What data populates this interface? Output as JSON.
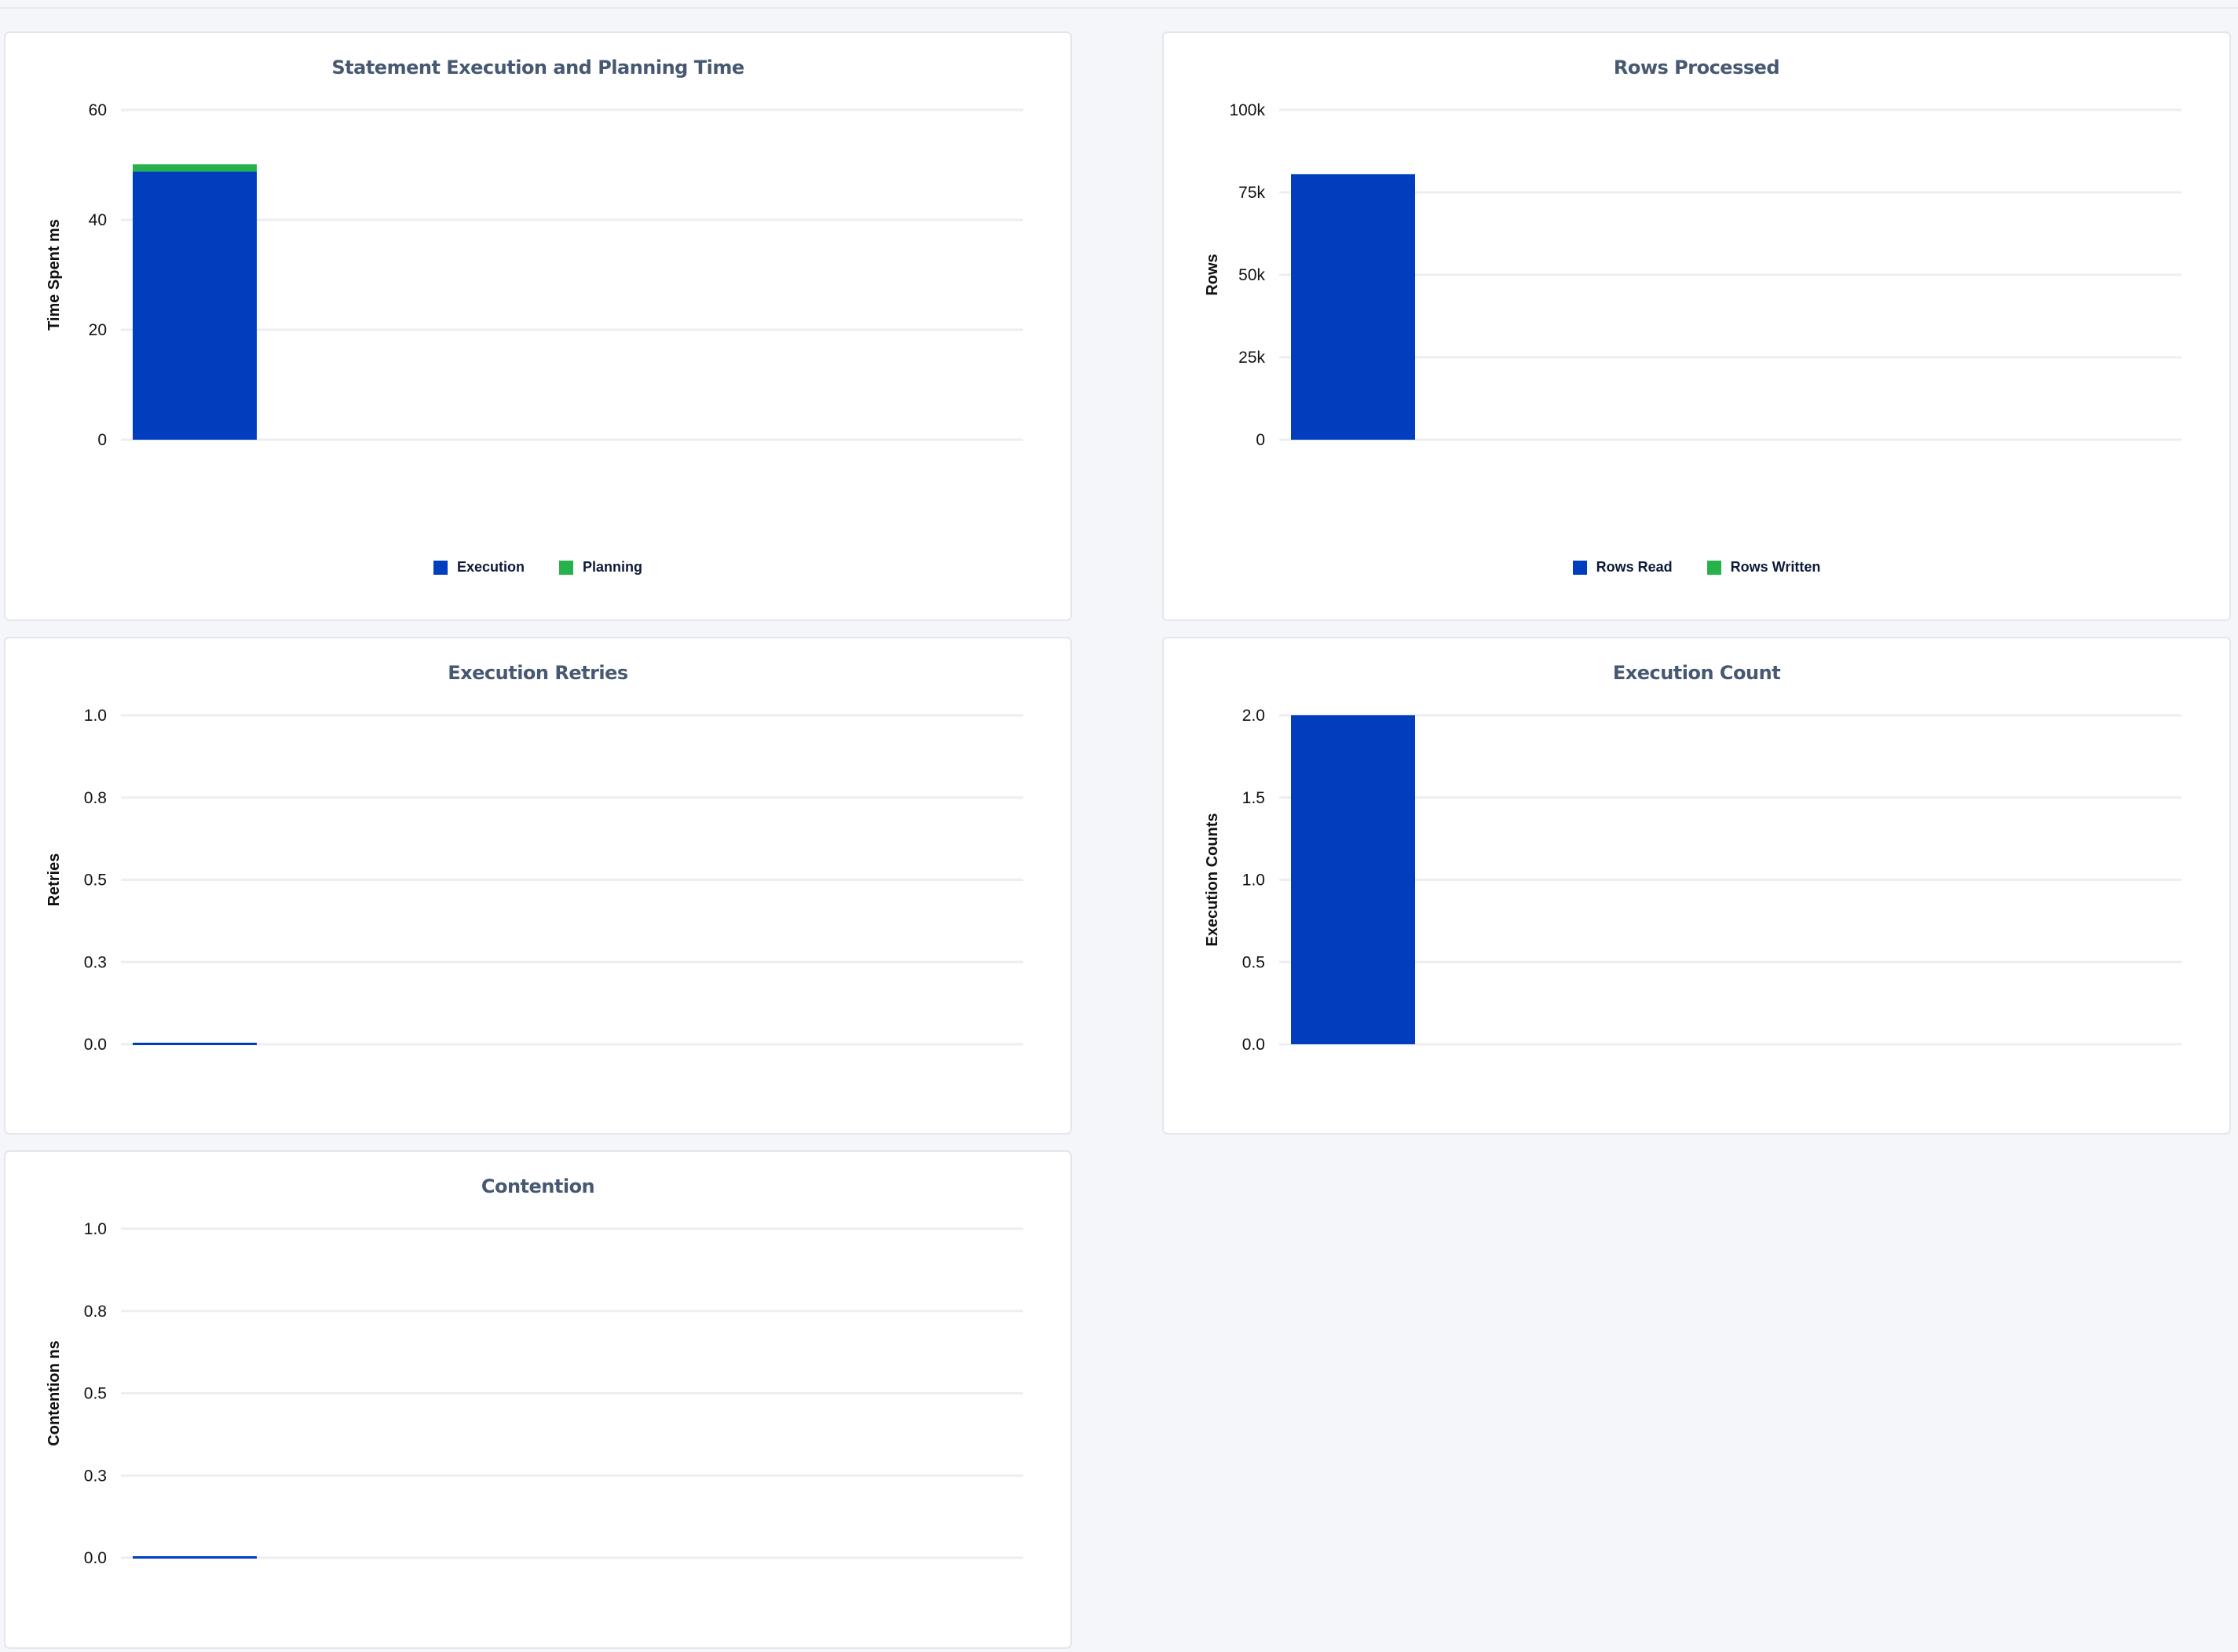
{
  "colors": {
    "primary": "#003ebd",
    "secondary": "#26b14a",
    "grid": "#eceef1",
    "title": "#475872"
  },
  "chart_data": [
    {
      "type": "bar",
      "stacked": true,
      "title": "Statement Execution and Planning Time",
      "ylabel": "Time Spent ms",
      "xlabel": "",
      "ylim": [
        0,
        60
      ],
      "yticks": [
        0,
        20,
        40,
        60
      ],
      "ytick_labels": [
        "0",
        "20",
        "40",
        "60"
      ],
      "grid": true,
      "legend": "bottom",
      "series": [
        {
          "name": "Execution",
          "values": [
            48.8
          ],
          "color": "#003ebd"
        },
        {
          "name": "Planning",
          "values": [
            1.3
          ],
          "color": "#26b14a"
        }
      ]
    },
    {
      "type": "bar",
      "stacked": true,
      "title": "Rows Processed",
      "ylabel": "Rows",
      "xlabel": "",
      "ylim": [
        0,
        100000
      ],
      "yticks": [
        0,
        25000,
        50000,
        75000,
        100000
      ],
      "ytick_labels": [
        "0",
        "25k",
        "50k",
        "75k",
        "100k"
      ],
      "grid": true,
      "legend": "bottom",
      "series": [
        {
          "name": "Rows Read",
          "values": [
            80500
          ],
          "color": "#003ebd"
        },
        {
          "name": "Rows Written",
          "values": [
            0
          ],
          "color": "#26b14a"
        }
      ]
    },
    {
      "type": "bar",
      "title": "Execution Retries",
      "ylabel": "Retries",
      "xlabel": "",
      "ylim": [
        0,
        1
      ],
      "yticks": [
        0,
        0.25,
        0.5,
        0.75,
        1
      ],
      "ytick_labels": [
        "0.0",
        "0.3",
        "0.5",
        "0.8",
        "1.0"
      ],
      "grid": true,
      "series": [
        {
          "values": [
            0
          ],
          "color": "#003ebd"
        }
      ]
    },
    {
      "type": "bar",
      "title": "Execution Count",
      "ylabel": "Execution Counts",
      "xlabel": "",
      "ylim": [
        0,
        2
      ],
      "yticks": [
        0,
        0.5,
        1,
        1.5,
        2
      ],
      "ytick_labels": [
        "0.0",
        "0.5",
        "1.0",
        "1.5",
        "2.0"
      ],
      "grid": true,
      "series": [
        {
          "values": [
            2
          ],
          "color": "#003ebd"
        }
      ]
    },
    {
      "type": "bar",
      "title": "Contention",
      "ylabel": "Contention ns",
      "xlabel": "",
      "ylim": [
        0,
        1
      ],
      "yticks": [
        0,
        0.25,
        0.5,
        0.75,
        1
      ],
      "ytick_labels": [
        "0.0",
        "0.3",
        "0.5",
        "0.8",
        "1.0"
      ],
      "grid": true,
      "series": [
        {
          "values": [
            0
          ],
          "color": "#003ebd"
        }
      ]
    }
  ]
}
